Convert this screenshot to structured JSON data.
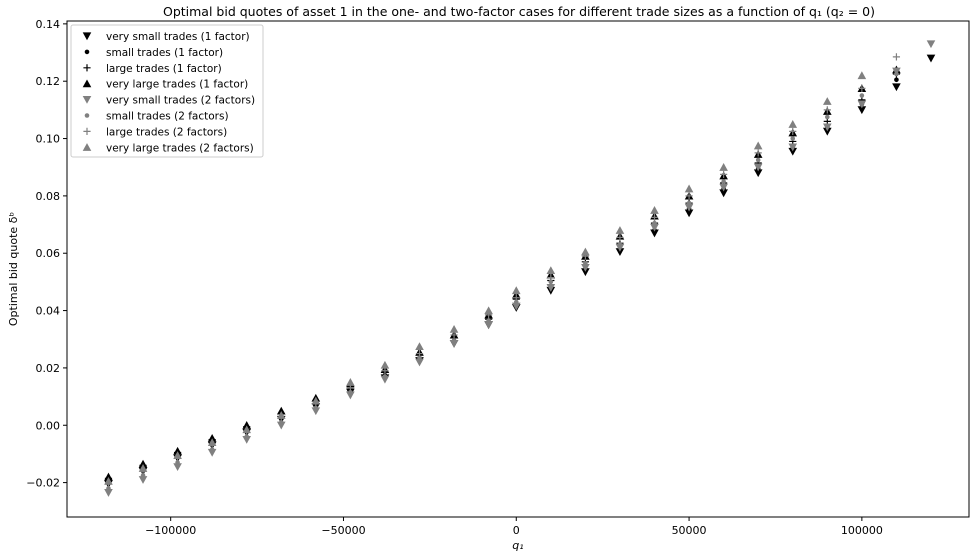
{
  "chart_data": {
    "type": "scatter",
    "title": "Optimal bid quotes of asset 1 in the one- and two-factor cases for different trade sizes as a function of q₁ (q₂ = 0)",
    "xlabel": "q₁",
    "ylabel": "Optimal bid quote δᵇ",
    "xlim": [
      -130000,
      131000
    ],
    "ylim": [
      -0.032,
      0.141
    ],
    "x_ticks": [
      -100000,
      -50000,
      0,
      50000,
      100000
    ],
    "x_tick_labels": [
      "−100000",
      "−50000",
      "0",
      "50000",
      "100000"
    ],
    "y_ticks": [
      -0.02,
      0.0,
      0.02,
      0.04,
      0.06,
      0.08,
      0.1,
      0.12,
      0.14
    ],
    "y_tick_labels": [
      "−0.02",
      "0.00",
      "0.02",
      "0.04",
      "0.06",
      "0.08",
      "0.10",
      "0.12",
      "0.14"
    ],
    "grid": false,
    "legend_position": "top-left",
    "x": [
      -118000,
      -108000,
      -98000,
      -88000,
      -78000,
      -68000,
      -58000,
      -48000,
      -38000,
      -28000,
      -18000,
      -8000,
      0,
      10000,
      20000,
      30000,
      40000,
      50000,
      60000,
      70000,
      80000,
      90000,
      100000,
      110000,
      120000
    ],
    "series": [
      {
        "name": "very small trades (1 factor)",
        "marker": "triangle-down",
        "color": "#000000",
        "values": [
          -0.0205,
          -0.016,
          -0.0115,
          -0.007,
          -0.0025,
          0.002,
          0.0065,
          0.0115,
          0.0165,
          0.0225,
          0.0285,
          0.035,
          0.041,
          0.047,
          0.0535,
          0.0605,
          0.067,
          0.074,
          0.081,
          0.088,
          0.0955,
          0.1025,
          0.11,
          0.118,
          0.128
        ]
      },
      {
        "name": "small trades (1 factor)",
        "marker": "dot",
        "color": "#000000",
        "values": [
          -0.0195,
          -0.015,
          -0.0105,
          -0.006,
          -0.0015,
          0.003,
          0.0075,
          0.0125,
          0.0175,
          0.0235,
          0.0295,
          0.036,
          0.042,
          0.048,
          0.0545,
          0.0615,
          0.068,
          0.0755,
          0.0825,
          0.0895,
          0.097,
          0.104,
          0.112,
          0.1205,
          null
        ]
      },
      {
        "name": "large trades (1 factor)",
        "marker": "plus",
        "color": "#000000",
        "values": [
          -0.0185,
          -0.014,
          -0.0095,
          -0.005,
          -0.0005,
          0.004,
          0.0085,
          0.0135,
          0.0185,
          0.0245,
          0.0305,
          0.037,
          0.044,
          0.0505,
          0.057,
          0.0635,
          0.0705,
          0.0775,
          0.0845,
          0.0915,
          0.099,
          0.106,
          0.1135,
          0.1225,
          null
        ]
      },
      {
        "name": "very large trades (1 factor)",
        "marker": "triangle-up",
        "color": "#000000",
        "values": [
          -0.018,
          -0.0135,
          -0.009,
          -0.0045,
          0.0,
          0.005,
          0.0095,
          0.0145,
          0.0195,
          0.0255,
          0.0315,
          0.0385,
          0.0455,
          0.0525,
          0.059,
          0.066,
          0.073,
          0.08,
          0.087,
          0.0945,
          0.102,
          0.1095,
          0.1175,
          0.124,
          null
        ]
      },
      {
        "name": "very small trades (2 factors)",
        "marker": "triangle-down",
        "color": "#808080",
        "values": [
          -0.0235,
          -0.019,
          -0.0145,
          -0.0095,
          -0.005,
          0.0,
          0.005,
          0.0105,
          0.016,
          0.022,
          0.0285,
          0.035,
          0.0415,
          0.048,
          0.055,
          0.062,
          0.069,
          0.076,
          0.083,
          0.09,
          0.097,
          0.104,
          0.112,
          0.1235,
          0.133
        ]
      },
      {
        "name": "small trades (2 factors)",
        "marker": "dot",
        "color": "#808080",
        "values": [
          -0.022,
          -0.0175,
          -0.013,
          -0.0085,
          -0.004,
          0.001,
          0.006,
          0.0115,
          0.017,
          0.0235,
          0.0295,
          0.0365,
          0.043,
          0.05,
          0.0565,
          0.063,
          0.0705,
          0.0775,
          0.085,
          0.0925,
          0.1,
          0.1075,
          0.115,
          0.1225,
          null
        ]
      },
      {
        "name": "large trades (2 factors)",
        "marker": "plus",
        "color": "#808080",
        "values": [
          -0.0205,
          -0.016,
          -0.0115,
          -0.007,
          -0.0025,
          0.0025,
          0.0075,
          0.013,
          0.019,
          0.025,
          0.0315,
          0.0385,
          0.0445,
          0.0515,
          0.059,
          0.0655,
          0.0725,
          0.08,
          0.0875,
          0.095,
          0.1025,
          0.11,
          0.1175,
          0.1285,
          null
        ]
      },
      {
        "name": "very large trades (2 factors)",
        "marker": "triangle-up",
        "color": "#808080",
        "values": [
          -0.0195,
          -0.015,
          -0.0105,
          -0.006,
          -0.0015,
          0.0035,
          0.0085,
          0.015,
          0.021,
          0.0275,
          0.0335,
          0.04,
          0.047,
          0.054,
          0.0605,
          0.068,
          0.075,
          0.0825,
          0.09,
          0.0975,
          0.105,
          0.113,
          0.122,
          null,
          null
        ]
      }
    ]
  }
}
